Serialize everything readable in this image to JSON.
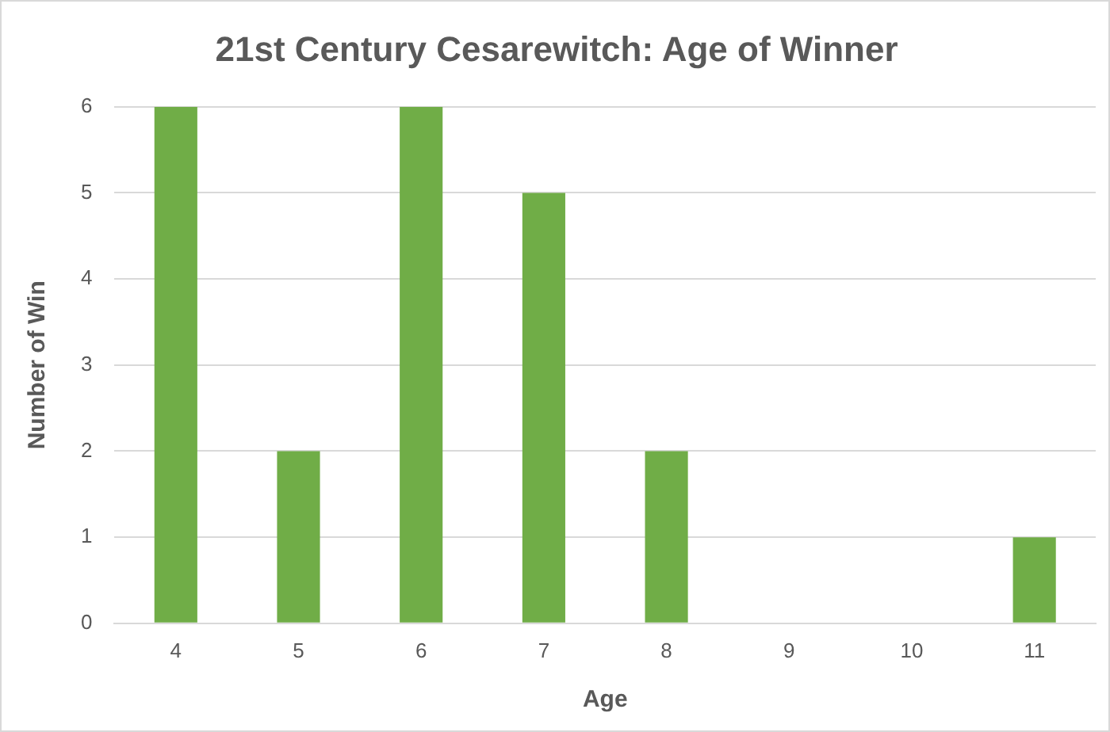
{
  "chart_data": {
    "type": "bar",
    "title": "21st Century Cesarewitch: Age of Winner",
    "xlabel": "Age",
    "ylabel": "Number of Win",
    "categories": [
      "4",
      "5",
      "6",
      "7",
      "8",
      "9",
      "10",
      "11"
    ],
    "values": [
      6,
      2,
      6,
      5,
      2,
      0,
      0,
      1
    ],
    "color": "#70ad47",
    "ylim": [
      0,
      6
    ],
    "yticks": [
      0,
      1,
      2,
      3,
      4,
      5,
      6
    ],
    "grid": "y",
    "legend": false
  }
}
